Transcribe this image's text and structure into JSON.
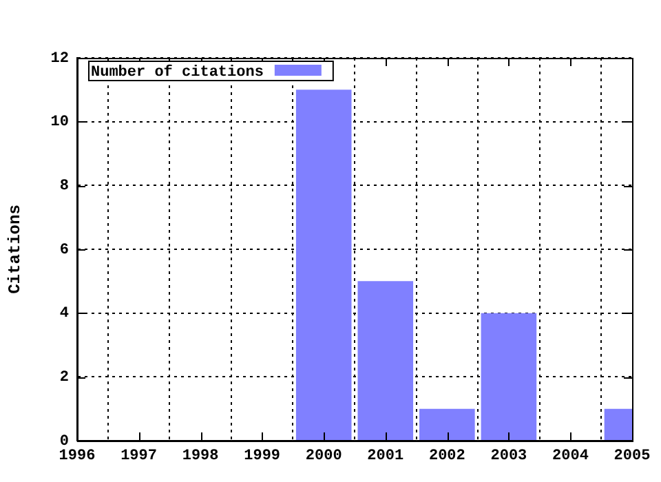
{
  "chart_data": {
    "type": "bar",
    "ylabel": "Citations",
    "x": [
      2000,
      2001,
      2002,
      2003,
      2005
    ],
    "series": [
      {
        "name": "Number of citations",
        "color": "#8080ff",
        "values": [
          11,
          5,
          1,
          4,
          1
        ]
      }
    ],
    "xlim": [
      1996,
      2005
    ],
    "xticks": [
      1996,
      1997,
      1998,
      1999,
      2000,
      2001,
      2002,
      2003,
      2004,
      2005
    ],
    "ylim": [
      0,
      12
    ],
    "yticks": [
      0,
      2,
      4,
      6,
      8,
      10,
      12
    ],
    "grid": true,
    "legend": "top left"
  }
}
